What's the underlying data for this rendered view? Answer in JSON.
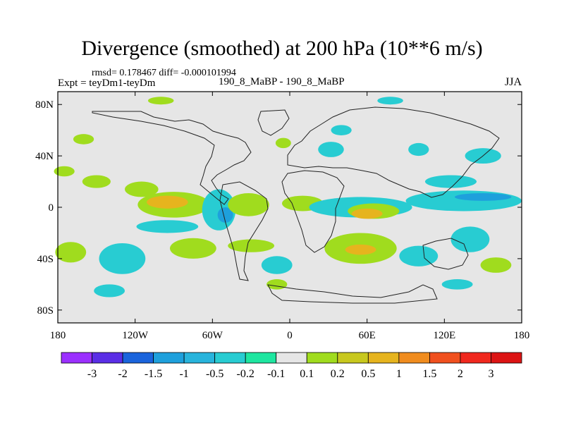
{
  "chart_data": {
    "type": "heatmap",
    "title": "Divergence (smoothed) at 200 hPa (10**6 m/s)",
    "stats_line": "rmsd= 0.178467 diff= -0.000101994",
    "left_label": "Expt = teyDm1-teyDm",
    "center_label": "190_8_MaBP - 190_8_MaBP",
    "right_label": "JJA",
    "x_axis": {
      "range": [
        -180,
        180
      ],
      "ticks": [
        {
          "value": -180,
          "label": "180"
        },
        {
          "value": -120,
          "label": "120W"
        },
        {
          "value": -60,
          "label": "60W"
        },
        {
          "value": 0,
          "label": "0"
        },
        {
          "value": 60,
          "label": "60E"
        },
        {
          "value": 120,
          "label": "120E"
        },
        {
          "value": 180,
          "label": "180"
        }
      ]
    },
    "y_axis": {
      "range": [
        -90,
        90
      ],
      "ticks": [
        {
          "value": 80,
          "label": "80N"
        },
        {
          "value": 40,
          "label": "40N"
        },
        {
          "value": 0,
          "label": "0"
        },
        {
          "value": -40,
          "label": "40S"
        },
        {
          "value": -80,
          "label": "80S"
        }
      ]
    },
    "colorbar": {
      "levels": [
        "-3",
        "-2",
        "-1.5",
        "-1",
        "-0.5",
        "-0.2",
        "-0.1",
        "0.1",
        "0.2",
        "0.5",
        "1",
        "1.5",
        "2",
        "3"
      ],
      "colors": [
        "#9b30ff",
        "#5a2ee6",
        "#1a64dc",
        "#1ea0dc",
        "#28b4dc",
        "#28ccd2",
        "#1ee6a0",
        "#e6e6e6",
        "#a0dc1e",
        "#c8c81e",
        "#e6b41e",
        "#f08c1e",
        "#f0501e",
        "#f0281e",
        "#dc1414"
      ]
    },
    "regions": [
      {
        "lon": -115,
        "lat": 14,
        "rlon": 13,
        "rlat": 6,
        "color": "#a0dc1e"
      },
      {
        "lon": -150,
        "lat": 20,
        "rlon": 11,
        "rlat": 5,
        "color": "#a0dc1e"
      },
      {
        "lon": -175,
        "lat": 28,
        "rlon": 8,
        "rlat": 4,
        "color": "#a0dc1e"
      },
      {
        "lon": -90,
        "lat": 2,
        "rlon": 28,
        "rlat": 10,
        "color": "#a0dc1e"
      },
      {
        "lon": -95,
        "lat": 4,
        "rlon": 16,
        "rlat": 5,
        "color": "#e6b41e"
      },
      {
        "lon": -95,
        "lat": -15,
        "rlon": 24,
        "rlat": 5,
        "color": "#28ccd2"
      },
      {
        "lon": -55,
        "lat": -2,
        "rlon": 13,
        "rlat": 16,
        "color": "#28ccd2"
      },
      {
        "lon": -50,
        "lat": -6,
        "rlon": 6,
        "rlat": 6,
        "color": "#1ea0dc"
      },
      {
        "lon": -32,
        "lat": 2,
        "rlon": 16,
        "rlat": 9,
        "color": "#a0dc1e"
      },
      {
        "lon": 10,
        "lat": 3,
        "rlon": 16,
        "rlat": 6,
        "color": "#a0dc1e"
      },
      {
        "lon": 55,
        "lat": 0,
        "rlon": 40,
        "rlat": 8,
        "color": "#28ccd2"
      },
      {
        "lon": 65,
        "lat": -3,
        "rlon": 20,
        "rlat": 6,
        "color": "#a0dc1e"
      },
      {
        "lon": 60,
        "lat": -5,
        "rlon": 12,
        "rlat": 4,
        "color": "#e6b41e"
      },
      {
        "lon": 135,
        "lat": 5,
        "rlon": 45,
        "rlat": 8,
        "color": "#28ccd2"
      },
      {
        "lon": 150,
        "lat": 8,
        "rlon": 22,
        "rlat": 3,
        "color": "#1ea0dc"
      },
      {
        "lon": 125,
        "lat": 20,
        "rlon": 20,
        "rlat": 5,
        "color": "#28ccd2"
      },
      {
        "lon": 150,
        "lat": 40,
        "rlon": 14,
        "rlat": 6,
        "color": "#28ccd2"
      },
      {
        "lon": 32,
        "lat": 45,
        "rlon": 10,
        "rlat": 6,
        "color": "#28ccd2"
      },
      {
        "lon": 100,
        "lat": 45,
        "rlon": 8,
        "rlat": 5,
        "color": "#28ccd2"
      },
      {
        "lon": -160,
        "lat": 53,
        "rlon": 8,
        "rlat": 4,
        "color": "#a0dc1e"
      },
      {
        "lon": -5,
        "lat": 50,
        "rlon": 6,
        "rlat": 4,
        "color": "#a0dc1e"
      },
      {
        "lon": 40,
        "lat": 60,
        "rlon": 8,
        "rlat": 4,
        "color": "#28ccd2"
      },
      {
        "lon": -100,
        "lat": 83,
        "rlon": 10,
        "rlat": 3,
        "color": "#a0dc1e"
      },
      {
        "lon": 78,
        "lat": 83,
        "rlon": 10,
        "rlat": 3,
        "color": "#28ccd2"
      },
      {
        "lon": -130,
        "lat": -40,
        "rlon": 18,
        "rlat": 12,
        "color": "#28ccd2"
      },
      {
        "lon": -170,
        "lat": -35,
        "rlon": 12,
        "rlat": 8,
        "color": "#a0dc1e"
      },
      {
        "lon": -75,
        "lat": -32,
        "rlon": 18,
        "rlat": 8,
        "color": "#a0dc1e"
      },
      {
        "lon": -30,
        "lat": -30,
        "rlon": 18,
        "rlat": 5,
        "color": "#a0dc1e"
      },
      {
        "lon": -10,
        "lat": -45,
        "rlon": 12,
        "rlat": 7,
        "color": "#28ccd2"
      },
      {
        "lon": 55,
        "lat": -32,
        "rlon": 28,
        "rlat": 12,
        "color": "#a0dc1e"
      },
      {
        "lon": 55,
        "lat": -33,
        "rlon": 12,
        "rlat": 4,
        "color": "#e6b41e"
      },
      {
        "lon": 100,
        "lat": -38,
        "rlon": 15,
        "rlat": 8,
        "color": "#28ccd2"
      },
      {
        "lon": 140,
        "lat": -25,
        "rlon": 15,
        "rlat": 10,
        "color": "#28ccd2"
      },
      {
        "lon": 160,
        "lat": -45,
        "rlon": 12,
        "rlat": 6,
        "color": "#a0dc1e"
      },
      {
        "lon": -140,
        "lat": -65,
        "rlon": 12,
        "rlat": 5,
        "color": "#28ccd2"
      },
      {
        "lon": -10,
        "lat": -60,
        "rlon": 8,
        "rlat": 4,
        "color": "#a0dc1e"
      },
      {
        "lon": 130,
        "lat": -60,
        "rlon": 12,
        "rlat": 4,
        "color": "#28ccd2"
      }
    ]
  }
}
